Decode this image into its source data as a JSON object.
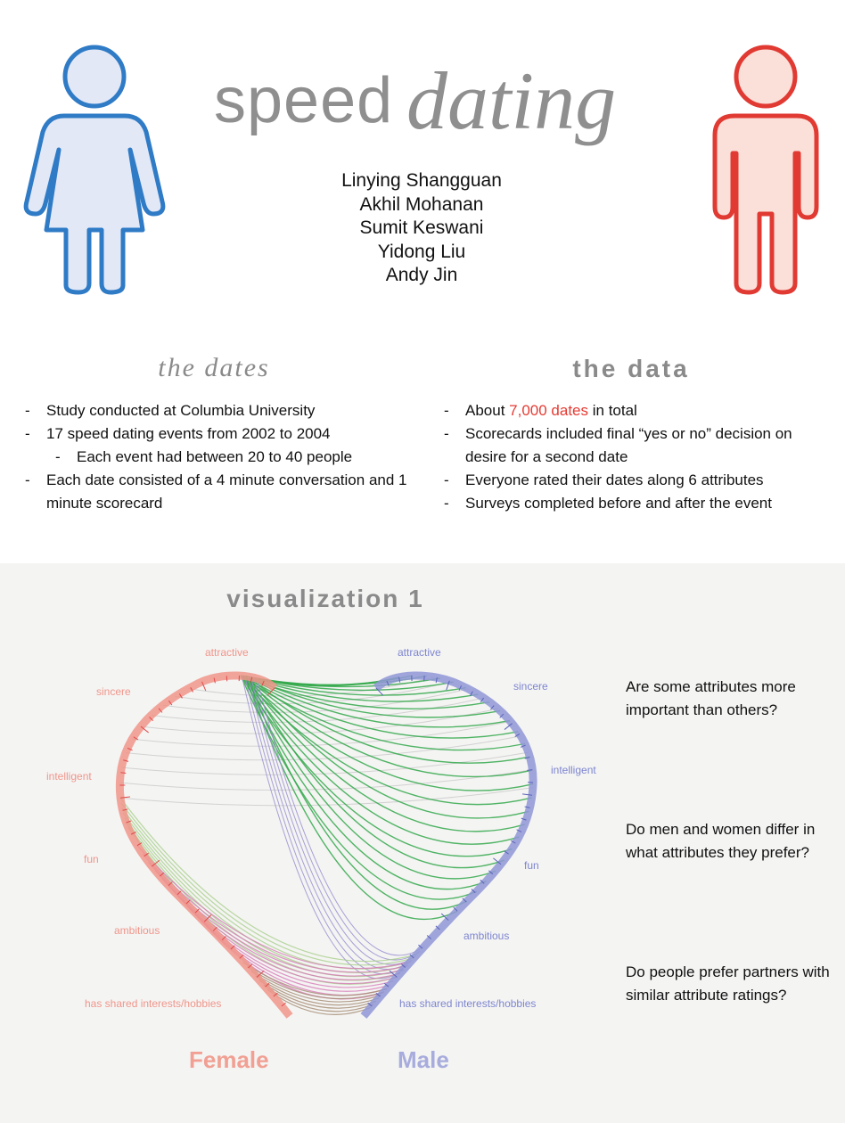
{
  "title": {
    "plain": "speed",
    "script": "dating"
  },
  "authors": [
    "Linying Shangguan",
    "Akhil Mohanan",
    "Sumit Keswani",
    "Yidong Liu",
    "Andy Jin"
  ],
  "dates_section": {
    "heading": "the dates",
    "items": [
      {
        "text": "Study conducted at Columbia University",
        "level": 1
      },
      {
        "text": "17 speed dating events from 2002 to 2004",
        "level": 1
      },
      {
        "text": "Each event had between 20 to 40 people",
        "level": 2
      },
      {
        "text": "Each date consisted of a 4 minute conversation and 1 minute scorecard",
        "level": 1
      }
    ]
  },
  "data_section": {
    "heading": "the data",
    "item1_prefix": "About ",
    "item1_highlight": "7,000 dates",
    "item1_suffix": " in total",
    "items": [
      "Scorecards included final “yes or no” decision on desire for a second date",
      "Everyone rated their dates along 6 attributes",
      "Surveys completed before and after the event"
    ]
  },
  "visualization": {
    "heading": "visualization 1",
    "female_attributes": [
      "attractive",
      "sincere",
      "intelligent",
      "fun",
      "ambitious",
      "has shared interests/hobbies"
    ],
    "male_attributes": [
      "attractive",
      "sincere",
      "intelligent",
      "fun",
      "ambitious",
      "has shared interests/hobbies"
    ],
    "gender_labels": {
      "female": "Female",
      "male": "Male"
    },
    "colors": {
      "female": "#f0958a",
      "male": "#8f96d6",
      "female_figure": "#e03a33",
      "male_figure": "#2f7bc6",
      "highlight": "#e53b33",
      "link_attractive": "#33a84a",
      "link_intelligent": "#9b8fcf",
      "link_fun": "#a8cf8a",
      "link_ambitious": "#d77ab8",
      "link_shared": "#a78e75",
      "link_other": "#c9c9c9"
    }
  },
  "questions": [
    "Are some attributes more important than others?",
    "Do men and women differ in what attributes they prefer?",
    "Do people prefer partners with similar attribute ratings?"
  ]
}
